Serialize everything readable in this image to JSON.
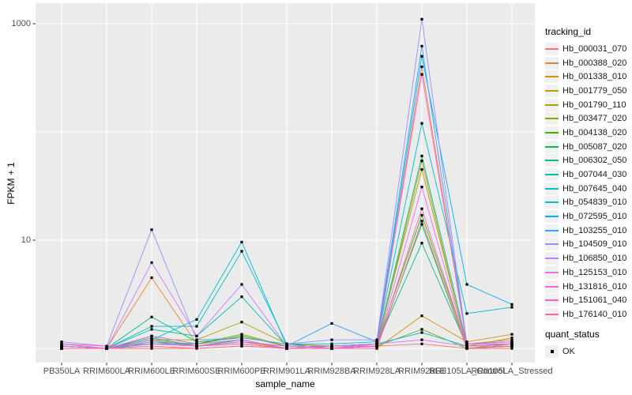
{
  "axes": {
    "x_label": "sample_name",
    "y_label": "FPKM + 1",
    "y_ticks": [
      {
        "label": "1000",
        "value": 1000
      },
      {
        "label": "10",
        "value": 10
      }
    ]
  },
  "legend": {
    "tracking_title": "tracking_id",
    "quant_title": "quant_status",
    "quant_items": [
      {
        "label": "OK"
      }
    ]
  },
  "colors": {
    "panel_background": "#EBEBEB",
    "gridline": "#FFFFFF",
    "point": "#000000",
    "legend_key_background": "#F0F0F0",
    "axis_text": "#4d4d4d"
  },
  "chart_data": {
    "type": "line",
    "title": "",
    "xlabel": "sample_name",
    "ylabel": "FPKM + 1",
    "y_scale": "log10",
    "ylim": [
      0.74,
      1550
    ],
    "y_labeled_breaks": [
      10,
      1000
    ],
    "y_gridlines": [
      1,
      10,
      100,
      1000
    ],
    "grid": true,
    "legend_position": "right",
    "point_shape": "filled-square",
    "quant_status_all_points": "OK",
    "categories": [
      "PB350LA",
      "RRIM600LA",
      "RRIM600LE",
      "RRIM600SE",
      "RRIM600PE",
      "RRIM901LA",
      "RRIM928BA",
      "RRIM928LA",
      "RRIM928LE",
      "RRII105LA_Control",
      "RRII105LA_Stressed"
    ],
    "series": [
      {
        "name": "Hb_000031_070",
        "color": "#F8766D",
        "values": [
          1.05,
          1,
          1,
          1,
          1.05,
          1,
          1,
          1.05,
          1.1,
          1,
          1
        ]
      },
      {
        "name": "Hb_000388_020",
        "color": "#EA8331",
        "values": [
          1,
          1,
          4.5,
          1.1,
          1.2,
          1,
          1,
          1.05,
          400,
          1.1,
          1.2
        ]
      },
      {
        "name": "Hb_001338_010",
        "color": "#D89000",
        "values": [
          1.05,
          1,
          1.2,
          1.05,
          1.1,
          1,
          1,
          1,
          2.0,
          1.15,
          1.35
        ]
      },
      {
        "name": "Hb_001779_050",
        "color": "#C09B00",
        "values": [
          1,
          1,
          1.1,
          1.05,
          1.15,
          1,
          1,
          1.05,
          54,
          1,
          1.1
        ]
      },
      {
        "name": "Hb_001790_110",
        "color": "#A3A500",
        "values": [
          1.1,
          1,
          1.2,
          1.2,
          1.75,
          1.1,
          1.05,
          1.1,
          45,
          1.05,
          1.25
        ]
      },
      {
        "name": "Hb_003477_020",
        "color": "#7CAE00",
        "values": [
          1,
          1,
          1.15,
          1.1,
          1.35,
          1.05,
          1,
          1.05,
          1.5,
          1,
          1.05
        ]
      },
      {
        "name": "Hb_004138_020",
        "color": "#39B600",
        "values": [
          1.05,
          1,
          1.3,
          1.1,
          1.3,
          1.05,
          1.05,
          1.1,
          17,
          1.05,
          1.1
        ]
      },
      {
        "name": "Hb_005087_020",
        "color": "#00BB4E",
        "values": [
          1,
          1,
          1.25,
          1.05,
          1.2,
          1,
          1,
          1.05,
          14,
          1,
          1.05
        ]
      },
      {
        "name": "Hb_006302_050",
        "color": "#00BF7D",
        "values": [
          1.05,
          1,
          1.95,
          1.15,
          1.25,
          1.1,
          1,
          1.1,
          9.4,
          1.05,
          1.1
        ]
      },
      {
        "name": "Hb_007044_030",
        "color": "#00C1A3",
        "values": [
          1,
          1,
          1.5,
          1.3,
          3.0,
          1.05,
          1.05,
          1.1,
          60,
          1.1,
          1.15
        ]
      },
      {
        "name": "Hb_007645_040",
        "color": "#00BFC4",
        "values": [
          1.05,
          1,
          1.6,
          1.6,
          7.9,
          1.1,
          1.1,
          1.15,
          120,
          2.1,
          2.4
        ]
      },
      {
        "name": "Hb_054839_010",
        "color": "#00BAE0",
        "values": [
          1,
          1,
          1.2,
          1.85,
          9.6,
          1.05,
          1.05,
          1.1,
          1.4,
          1.05,
          1.1
        ]
      },
      {
        "name": "Hb_072595_010",
        "color": "#00B0F6",
        "values": [
          1,
          1,
          1.1,
          1.1,
          1.2,
          1,
          1.05,
          1.1,
          500,
          3.9,
          2.55
        ]
      },
      {
        "name": "Hb_103255_010",
        "color": "#35A2FF",
        "values": [
          1.05,
          1,
          1.15,
          1.05,
          1.15,
          1.05,
          1.7,
          1.15,
          620,
          1.1,
          1.15
        ]
      },
      {
        "name": "Hb_104509_010",
        "color": "#9590FF",
        "values": [
          1.15,
          1.05,
          12.5,
          1.2,
          1.25,
          1.1,
          1.2,
          1.2,
          1100,
          1.1,
          1.1
        ]
      },
      {
        "name": "Hb_106850_010",
        "color": "#C77CFF",
        "values": [
          1.1,
          1,
          6.2,
          1.3,
          3.9,
          1.05,
          1.05,
          1.1,
          1.2,
          1.05,
          1.05
        ]
      },
      {
        "name": "Hb_125153_010",
        "color": "#E76BF3",
        "values": [
          1,
          1,
          1.3,
          1.1,
          1.2,
          1,
          1,
          1.05,
          31,
          1.05,
          1.1
        ]
      },
      {
        "name": "Hb_131816_010",
        "color": "#FA62DB",
        "values": [
          1.05,
          1,
          1.2,
          1.05,
          1.15,
          1.05,
          1,
          1.1,
          340,
          1.1,
          1.15
        ]
      },
      {
        "name": "Hb_151061_040",
        "color": "#FF62BC",
        "values": [
          1.1,
          1.05,
          1.1,
          1.05,
          1.1,
          1,
          1.05,
          1.05,
          19.5,
          1.05,
          1.1
        ]
      },
      {
        "name": "Hb_176140_010",
        "color": "#FF6A98",
        "values": [
          1,
          1,
          1.05,
          1,
          1.05,
          1,
          1,
          1,
          15,
          1,
          1.05
        ]
      }
    ]
  }
}
